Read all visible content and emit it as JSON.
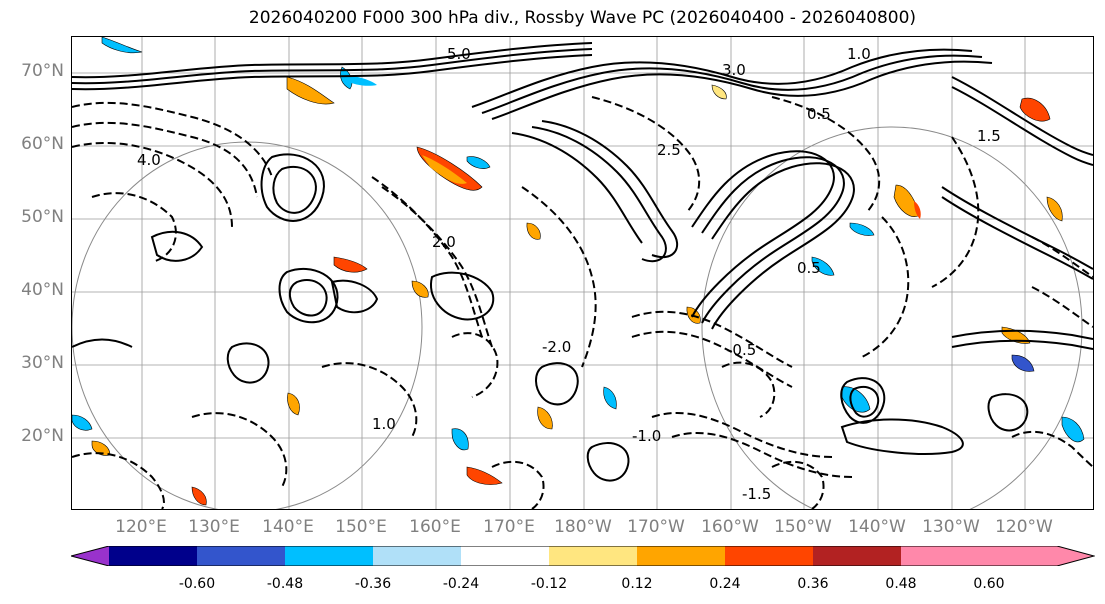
{
  "title": "2026040200 F000 300 hPa div., Rossby Wave PC (2026040400 - 2026040800)",
  "lat_labels": [
    "70°N",
    "60°N",
    "50°N",
    "40°N",
    "30°N",
    "20°N"
  ],
  "lon_labels": [
    "120°E",
    "130°E",
    "140°E",
    "150°E",
    "160°E",
    "170°E",
    "180°W",
    "170°W",
    "160°W",
    "150°W",
    "140°W",
    "130°W",
    "120°W"
  ],
  "contour_labels": [
    "5.0",
    "1.0",
    "3.0",
    "0.5",
    "2.5",
    "1.5",
    "4.0",
    "2.0",
    "-0.5",
    "-1.0",
    "-1.5",
    "-2.0",
    "0.5",
    "1.0"
  ],
  "colorbar": {
    "ticks": [
      "-0.60",
      "-0.48",
      "-0.36",
      "-0.24",
      "-0.12",
      "0.12",
      "0.24",
      "0.36",
      "0.48",
      "0.60"
    ],
    "colors": [
      "#9932cc",
      "#00008b",
      "#3355cc",
      "#00bfff",
      "#b0e0f8",
      "#ffffff",
      "#ffe680",
      "#ffa500",
      "#ff4500",
      "#b22222",
      "#ff88aa"
    ]
  }
}
